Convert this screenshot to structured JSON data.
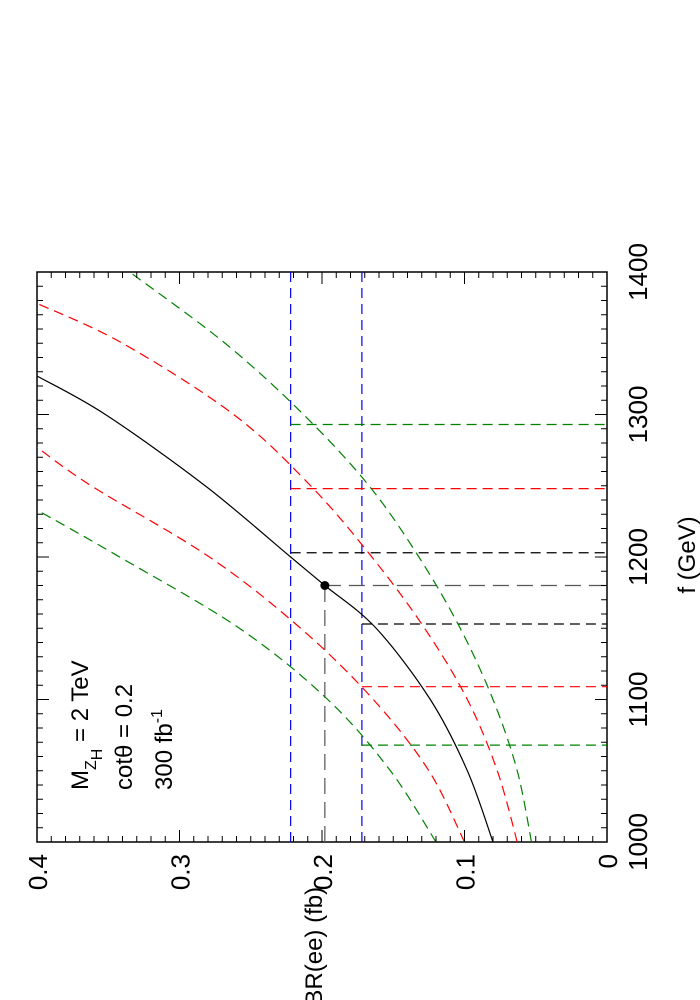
{
  "chart_data": {
    "type": "line",
    "orientation": "rotated-90-ccw",
    "xlabel": "f  (GeV)",
    "ylabel": "σ * BR(ee)  (fb)",
    "xlim": [
      1000,
      1400
    ],
    "ylim": [
      0,
      0.4
    ],
    "x_ticks": [
      "1000",
      "1100",
      "1200",
      "1300",
      "1400"
    ],
    "y_ticks": [
      "0",
      "0.1",
      "0.2",
      "0.3",
      "0.4"
    ],
    "annotations": {
      "line1": "M",
      "line1_sub": "Z",
      "line1_subsub": "H",
      "line1_rest": " = 2 TeV",
      "line2": "cotθ = 0.2",
      "line3": "300 fb",
      "line3_sup": "-1"
    },
    "curves": [
      {
        "role": "central",
        "color": "#000000",
        "dash": "solid",
        "x": [
          1000,
          1050,
          1100,
          1150,
          1180,
          1200,
          1250,
          1300,
          1327
        ],
        "y": [
          0.08,
          0.098,
          0.124,
          0.162,
          0.198,
          0.222,
          0.282,
          0.352,
          0.4
        ]
      },
      {
        "role": "1-sigma-upper",
        "color": "#ff0000",
        "dash": "dashed",
        "x": [
          1000,
          1050,
          1100,
          1150,
          1200,
          1250,
          1277
        ],
        "y": [
          0.1,
          0.125,
          0.164,
          0.215,
          0.279,
          0.362,
          0.4
        ]
      },
      {
        "role": "1-sigma-lower",
        "color": "#ff0000",
        "dash": "dashed",
        "x": [
          1000,
          1050,
          1100,
          1150,
          1200,
          1250,
          1300,
          1350,
          1378
        ],
        "y": [
          0.063,
          0.077,
          0.098,
          0.128,
          0.165,
          0.208,
          0.262,
          0.34,
          0.4
        ]
      },
      {
        "role": "2-sigma-upper",
        "color": "#008000",
        "dash": "dashed",
        "x": [
          1000,
          1050,
          1100,
          1150,
          1200,
          1233
        ],
        "y": [
          0.12,
          0.152,
          0.196,
          0.258,
          0.342,
          0.4
        ]
      },
      {
        "role": "2-sigma-lower",
        "color": "#008000",
        "dash": "dashed",
        "x": [
          1000,
          1050,
          1100,
          1150,
          1200,
          1250,
          1300,
          1350,
          1400
        ],
        "y": [
          0.053,
          0.063,
          0.08,
          0.103,
          0.132,
          0.167,
          0.213,
          0.268,
          0.335
        ]
      }
    ],
    "horizontal_lines": [
      {
        "y": 0.222,
        "color": "#0000ff",
        "dash": "dashed"
      },
      {
        "y": 0.172,
        "color": "#0000ff",
        "dash": "dashed"
      },
      {
        "y": 0.198,
        "color": "#555555",
        "dash": "long-dashed",
        "x_range": [
          1000,
          1180
        ]
      }
    ],
    "vertical_lines": [
      {
        "x": 1180,
        "y_top": 0.198,
        "color": "#555555",
        "dash": "long-dashed"
      },
      {
        "x": 1153,
        "y_top": 0.172,
        "color": "#000000",
        "dash": "dashed"
      },
      {
        "x": 1203,
        "y_top": 0.222,
        "color": "#000000",
        "dash": "dashed"
      },
      {
        "x": 1109,
        "y_top": 0.172,
        "color": "#ff0000",
        "dash": "dashed"
      },
      {
        "x": 1248,
        "y_top": 0.222,
        "color": "#ff0000",
        "dash": "dashed"
      },
      {
        "x": 1068,
        "y_top": 0.172,
        "color": "#008000",
        "dash": "dashed"
      },
      {
        "x": 1293,
        "y_top": 0.222,
        "color": "#008000",
        "dash": "dashed"
      }
    ],
    "point": {
      "x": 1180,
      "y": 0.198
    }
  }
}
